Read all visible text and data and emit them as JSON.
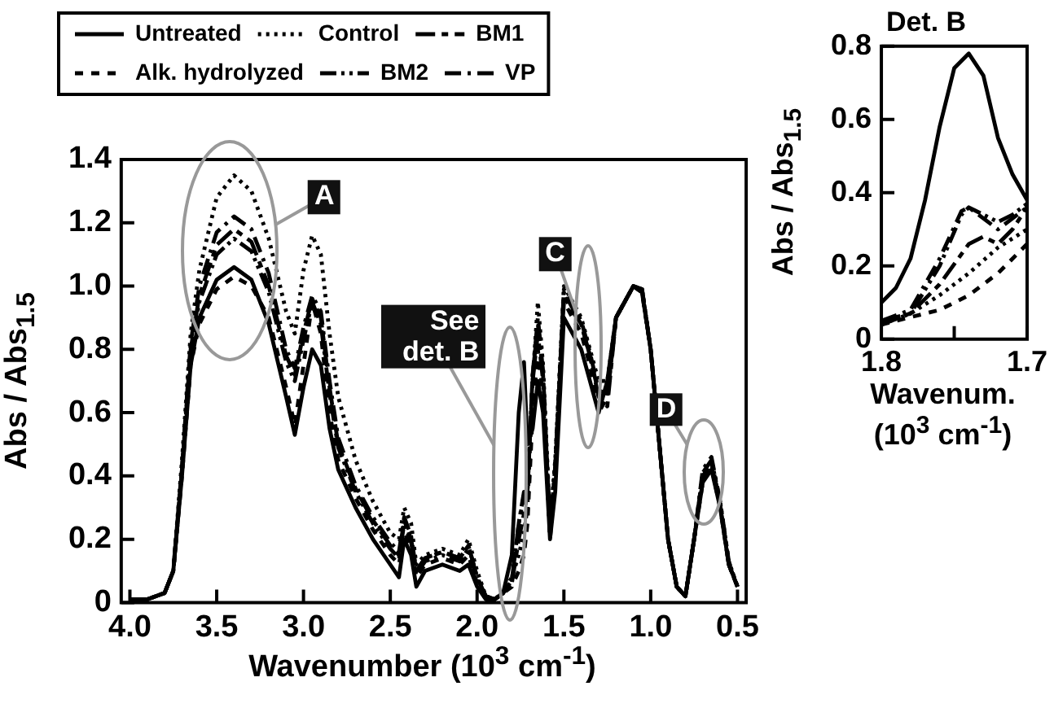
{
  "chart_data": [
    {
      "type": "line",
      "xlabel": "Wavenumber (10$^{3}$ cm$^{-1}$)",
      "ylabel": "Abs / Abs$_{1.5}$",
      "legend": "top left",
      "xlim": [
        4.05,
        0.45
      ],
      "xticks": [
        {
          "value": 4,
          "label": "4.0"
        },
        3.5,
        {
          "value": 3,
          "label": "3.0"
        },
        2.5,
        {
          "value": 2,
          "label": "2.0"
        },
        1.5,
        {
          "value": 1,
          "label": "1.0"
        },
        0.5
      ],
      "ylim": [
        0,
        1.4
      ],
      "yticks": [
        0,
        0.2,
        0.4,
        0.6,
        0.8,
        {
          "value": 1,
          "label": "1.0"
        },
        1.2,
        1.4
      ],
      "x": [
        4.0,
        3.9,
        3.8,
        3.75,
        3.7,
        3.65,
        3.6,
        3.5,
        3.4,
        3.3,
        3.2,
        3.1,
        3.05,
        3.0,
        2.95,
        2.9,
        2.85,
        2.8,
        2.7,
        2.6,
        2.5,
        2.45,
        2.42,
        2.38,
        2.35,
        2.3,
        2.2,
        2.1,
        2.05,
        2.0,
        1.95,
        1.9,
        1.85,
        1.8,
        1.76,
        1.73,
        1.71,
        1.68,
        1.65,
        1.62,
        1.58,
        1.55,
        1.5,
        1.45,
        1.4,
        1.35,
        1.3,
        1.25,
        1.2,
        1.1,
        1.05,
        1.0,
        0.95,
        0.9,
        0.85,
        0.8,
        0.75,
        0.7,
        0.65,
        0.6,
        0.55,
        0.5
      ],
      "series": [
        {
          "name": "Untreated",
          "color": "#000000",
          "line_style": "solid",
          "values": [
            0.01,
            0.01,
            0.03,
            0.1,
            0.4,
            0.75,
            0.9,
            1.02,
            1.06,
            1.02,
            0.88,
            0.65,
            0.53,
            0.68,
            0.8,
            0.75,
            0.55,
            0.42,
            0.3,
            0.2,
            0.12,
            0.08,
            0.2,
            0.15,
            0.05,
            0.1,
            0.12,
            0.1,
            0.12,
            0.05,
            0.01,
            0.01,
            0.03,
            0.15,
            0.6,
            0.76,
            0.5,
            0.55,
            0.7,
            0.6,
            0.2,
            0.35,
            0.9,
            0.85,
            0.8,
            0.7,
            0.6,
            0.7,
            0.9,
            1.0,
            0.98,
            0.8,
            0.5,
            0.2,
            0.05,
            0.02,
            0.2,
            0.38,
            0.42,
            0.3,
            0.12,
            0.05
          ]
        },
        {
          "name": "Control",
          "color": "#000000",
          "line_style": "dotted",
          "values": [
            0.01,
            0.01,
            0.03,
            0.1,
            0.45,
            0.85,
            1.05,
            1.28,
            1.35,
            1.3,
            1.15,
            0.92,
            0.85,
            1.05,
            1.16,
            1.1,
            0.85,
            0.65,
            0.45,
            0.32,
            0.22,
            0.2,
            0.3,
            0.25,
            0.12,
            0.15,
            0.17,
            0.15,
            0.2,
            0.1,
            0.02,
            0.01,
            0.03,
            0.08,
            0.15,
            0.22,
            0.3,
            0.7,
            0.95,
            0.75,
            0.25,
            0.45,
            1.0,
            0.95,
            0.9,
            0.8,
            0.7,
            0.7,
            0.9,
            1.0,
            0.99,
            0.8,
            0.5,
            0.2,
            0.05,
            0.02,
            0.2,
            0.4,
            0.45,
            0.32,
            0.13,
            0.05
          ]
        },
        {
          "name": "BM1",
          "color": "#000000",
          "line_style": "longdash",
          "values": [
            0.01,
            0.01,
            0.03,
            0.1,
            0.42,
            0.8,
            0.97,
            1.13,
            1.18,
            1.14,
            1.0,
            0.78,
            0.72,
            0.85,
            0.96,
            0.9,
            0.68,
            0.5,
            0.36,
            0.26,
            0.18,
            0.15,
            0.26,
            0.2,
            0.1,
            0.14,
            0.16,
            0.14,
            0.18,
            0.08,
            0.02,
            0.01,
            0.03,
            0.06,
            0.2,
            0.28,
            0.35,
            0.7,
            0.85,
            0.7,
            0.22,
            0.42,
            0.97,
            0.92,
            0.88,
            0.78,
            0.65,
            0.62,
            0.9,
            1.0,
            0.99,
            0.8,
            0.5,
            0.2,
            0.05,
            0.02,
            0.2,
            0.4,
            0.44,
            0.31,
            0.12,
            0.05
          ]
        },
        {
          "name": "Alk. hydrolyzed",
          "color": "#000000",
          "line_style": "dashed",
          "values": [
            0.01,
            0.01,
            0.03,
            0.1,
            0.4,
            0.75,
            0.88,
            0.99,
            1.03,
            1.0,
            0.9,
            0.68,
            0.56,
            0.75,
            0.95,
            0.85,
            0.6,
            0.45,
            0.33,
            0.23,
            0.15,
            0.12,
            0.22,
            0.18,
            0.08,
            0.12,
            0.14,
            0.12,
            0.15,
            0.06,
            0.01,
            0.01,
            0.03,
            0.05,
            0.1,
            0.15,
            0.25,
            0.6,
            0.8,
            0.65,
            0.2,
            0.4,
            0.95,
            0.9,
            0.85,
            0.75,
            0.6,
            0.65,
            0.9,
            1.0,
            0.98,
            0.8,
            0.5,
            0.2,
            0.05,
            0.02,
            0.2,
            0.38,
            0.43,
            0.3,
            0.12,
            0.05
          ]
        },
        {
          "name": "BM2",
          "color": "#000000",
          "line_style": "dashdotdot",
          "values": [
            0.01,
            0.01,
            0.03,
            0.1,
            0.42,
            0.8,
            0.95,
            1.1,
            1.15,
            1.11,
            0.98,
            0.76,
            0.7,
            0.83,
            0.95,
            0.88,
            0.66,
            0.49,
            0.35,
            0.25,
            0.17,
            0.14,
            0.25,
            0.19,
            0.09,
            0.13,
            0.15,
            0.13,
            0.17,
            0.07,
            0.02,
            0.01,
            0.03,
            0.07,
            0.25,
            0.35,
            0.35,
            0.72,
            0.88,
            0.72,
            0.23,
            0.43,
            0.98,
            0.93,
            0.88,
            0.78,
            0.66,
            0.65,
            0.9,
            1.0,
            0.99,
            0.8,
            0.5,
            0.2,
            0.05,
            0.02,
            0.2,
            0.41,
            0.45,
            0.31,
            0.12,
            0.05
          ]
        },
        {
          "name": "VP",
          "color": "#000000",
          "line_style": "dashdot",
          "values": [
            0.01,
            0.01,
            0.03,
            0.1,
            0.43,
            0.82,
            1.0,
            1.17,
            1.22,
            1.18,
            1.04,
            0.8,
            0.74,
            0.87,
            0.97,
            0.92,
            0.7,
            0.52,
            0.37,
            0.27,
            0.19,
            0.16,
            0.27,
            0.21,
            0.1,
            0.14,
            0.16,
            0.14,
            0.18,
            0.08,
            0.02,
            0.01,
            0.03,
            0.07,
            0.25,
            0.34,
            0.34,
            0.72,
            0.9,
            0.73,
            0.23,
            0.43,
            0.99,
            0.94,
            0.89,
            0.79,
            0.67,
            0.66,
            0.9,
            1.0,
            0.99,
            0.8,
            0.5,
            0.2,
            0.05,
            0.02,
            0.2,
            0.42,
            0.46,
            0.32,
            0.13,
            0.05
          ]
        }
      ],
      "annotations": [
        {
          "text": "A",
          "x": 2.88,
          "y": 1.28
        },
        "See det. B",
        {
          "text": "C",
          "x": 1.55,
          "y": 1.1
        },
        {
          "text": "D",
          "x": 0.91,
          "y": 0.61
        }
      ]
    },
    {
      "type": "line",
      "title": "Det. B",
      "xlabel": "Wavenum. (10$^{3}$ cm$^{-1}$)",
      "ylabel": "Abs / Abs$_{1.5}$",
      "xlim": [
        1.8,
        1.7
      ],
      "xticks": [
        1.8,
        {
          "value": 1.75,
          "label": null
        },
        1.7
      ],
      "ylim": [
        0,
        0.8
      ],
      "yticks": [
        0,
        0.2,
        0.4,
        0.6,
        0.8
      ],
      "series": [
        {
          "color": "#000000",
          "line_style": "solid",
          "x": [
            1.8,
            1.79,
            1.78,
            1.77,
            1.76,
            1.75,
            1.74,
            1.73,
            1.72,
            1.71,
            1.7
          ],
          "values": [
            0.1,
            0.14,
            0.22,
            0.38,
            0.58,
            0.74,
            0.78,
            0.72,
            0.55,
            0.45,
            0.38
          ]
        },
        {
          "color": "#000000",
          "line_style": "dotted",
          "x": [
            1.8,
            1.78,
            1.76,
            1.74,
            1.72,
            1.7
          ],
          "values": [
            0.04,
            0.07,
            0.12,
            0.18,
            0.25,
            0.3
          ]
        },
        {
          "color": "#000000",
          "line_style": "longdash",
          "x": [
            1.8,
            1.78,
            1.76,
            1.74,
            1.73,
            1.72,
            1.71,
            1.7
          ],
          "values": [
            0.05,
            0.07,
            0.15,
            0.26,
            0.28,
            0.26,
            0.3,
            0.36
          ]
        },
        {
          "color": "#000000",
          "line_style": "dashed",
          "x": [
            1.8,
            1.78,
            1.76,
            1.74,
            1.72,
            1.7
          ],
          "values": [
            0.04,
            0.06,
            0.08,
            0.12,
            0.18,
            0.26
          ]
        },
        {
          "color": "#000000",
          "line_style": "dashdotdot",
          "x": [
            1.8,
            1.78,
            1.76,
            1.745,
            1.74,
            1.73,
            1.72,
            1.71,
            1.7
          ],
          "values": [
            0.04,
            0.07,
            0.2,
            0.34,
            0.36,
            0.34,
            0.32,
            0.34,
            0.37
          ]
        },
        {
          "color": "#000000",
          "line_style": "dashdot",
          "x": [
            1.8,
            1.78,
            1.76,
            1.745,
            1.74,
            1.73,
            1.72,
            1.71,
            1.7
          ],
          "values": [
            0.05,
            0.08,
            0.22,
            0.35,
            0.36,
            0.33,
            0.3,
            0.33,
            0.36
          ]
        }
      ]
    }
  ]
}
